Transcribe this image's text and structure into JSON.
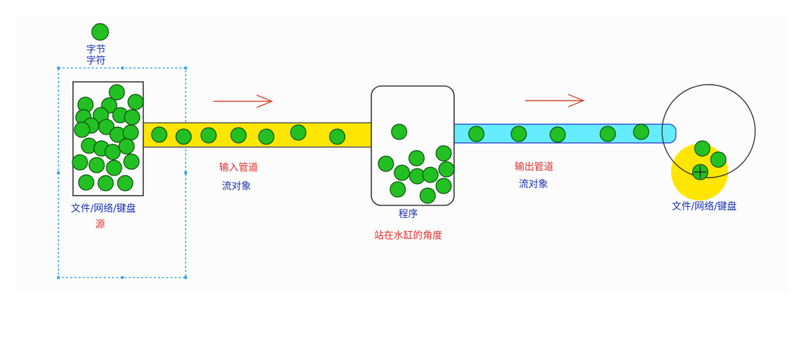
{
  "legend": {
    "line1": "字节",
    "line2": "字符"
  },
  "source": {
    "label": "文件/网络/键盘",
    "role": "源"
  },
  "input_pipe": {
    "title": "输入管道",
    "subtitle": "流对象"
  },
  "program": {
    "label": "程序",
    "caption": "站在水缸的角度"
  },
  "output_pipe": {
    "title": "输出管道",
    "subtitle": "流对象"
  },
  "destination": {
    "label": "文件/网络/键盘"
  },
  "colors": {
    "ball": "#22c022",
    "ball_stroke": "#0b4d0b",
    "input_pipe": "#ffe600",
    "output_pipe": "#66ecff",
    "destination_glow": "#ffe600",
    "arrow": "#d7442e",
    "dashed_box": "#3ba8e6",
    "red_text": "#e0302a",
    "blue_text": "#1a2fb0"
  }
}
